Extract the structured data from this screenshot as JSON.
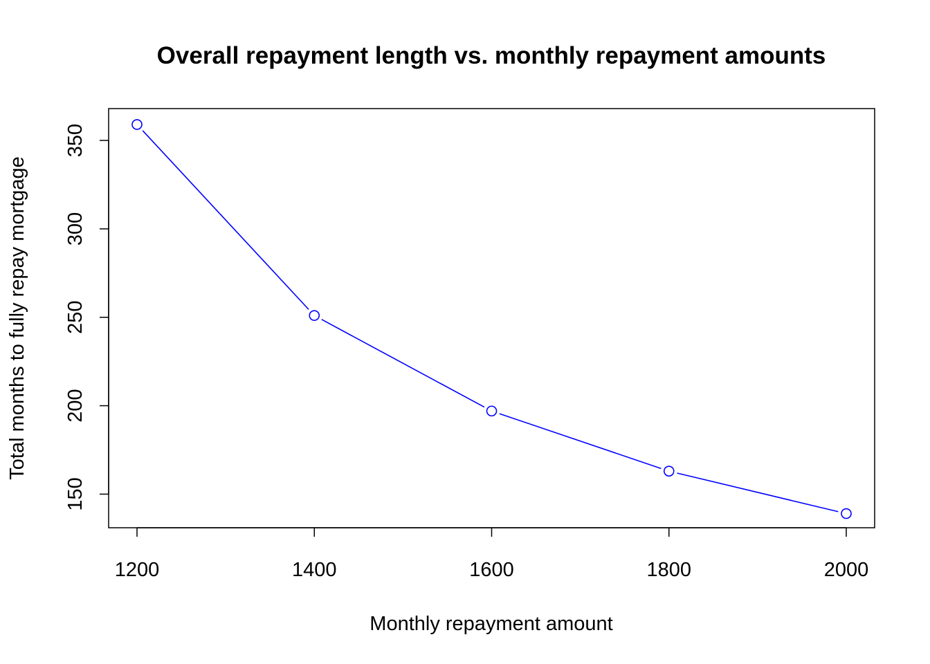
{
  "chart_data": {
    "type": "line",
    "title": "Overall repayment length vs. monthly repayment amounts",
    "xlabel": "Monthly repayment amount",
    "ylabel": "Total months to fully repay mortgage",
    "x": [
      1200,
      1400,
      1600,
      1800,
      2000
    ],
    "series": [
      {
        "values": [
          359,
          251,
          197,
          163,
          139
        ],
        "color": "#0000ff",
        "marker": "open-circle",
        "line_style": "solid-with-gaps"
      }
    ],
    "xlim": [
      1168,
      2032
    ],
    "ylim": [
      131,
      368
    ],
    "x_ticks": [
      1200,
      1400,
      1600,
      1800,
      2000
    ],
    "x_tick_labels": [
      "1200",
      "1400",
      "1600",
      "1800",
      "2000"
    ],
    "y_ticks": [
      150,
      200,
      250,
      300,
      350
    ],
    "y_tick_labels": [
      "150",
      "200",
      "250",
      "300",
      "350"
    ],
    "grid": false,
    "legend": "none"
  }
}
